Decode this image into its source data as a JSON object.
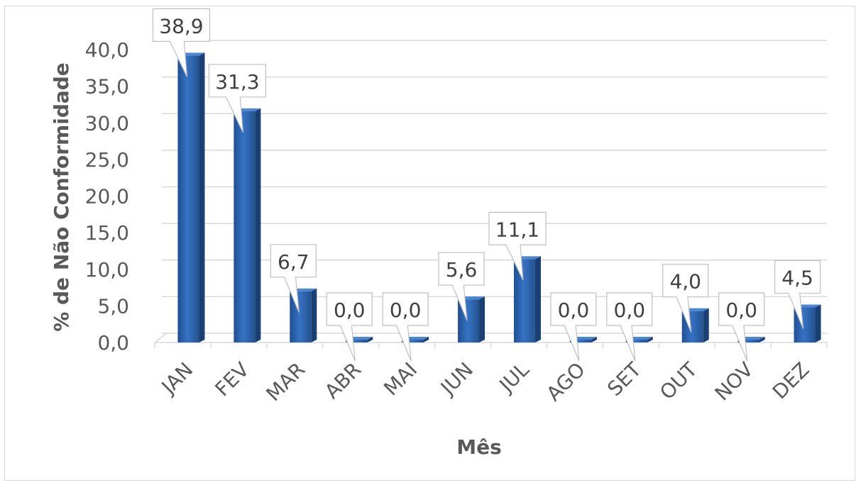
{
  "chart_data": {
    "type": "bar",
    "title": "",
    "xlabel": "Mês",
    "ylabel": "% de Não Conformidade",
    "categories": [
      "JAN",
      "FEV",
      "MAR",
      "ABR",
      "MAI",
      "JUN",
      "JUL",
      "AGO",
      "SET",
      "OUT",
      "NOV",
      "DEZ"
    ],
    "values": [
      38.9,
      31.3,
      6.7,
      0.0,
      0.0,
      5.6,
      11.1,
      0.0,
      0.0,
      4.0,
      0.0,
      4.5
    ],
    "data_labels": [
      "38,9",
      "31,3",
      "6,7",
      "0,0",
      "0,0",
      "5,6",
      "11,1",
      "0,0",
      "0,0",
      "4,0",
      "0,0",
      "4,5"
    ],
    "y_ticks": [
      "0,0",
      "5,0",
      "10,0",
      "15,0",
      "20,0",
      "25,0",
      "30,0",
      "35,0",
      "40,0"
    ],
    "ylim": [
      0,
      40
    ],
    "grid": true,
    "bar_color": "#2e63a8",
    "legend": "none"
  }
}
